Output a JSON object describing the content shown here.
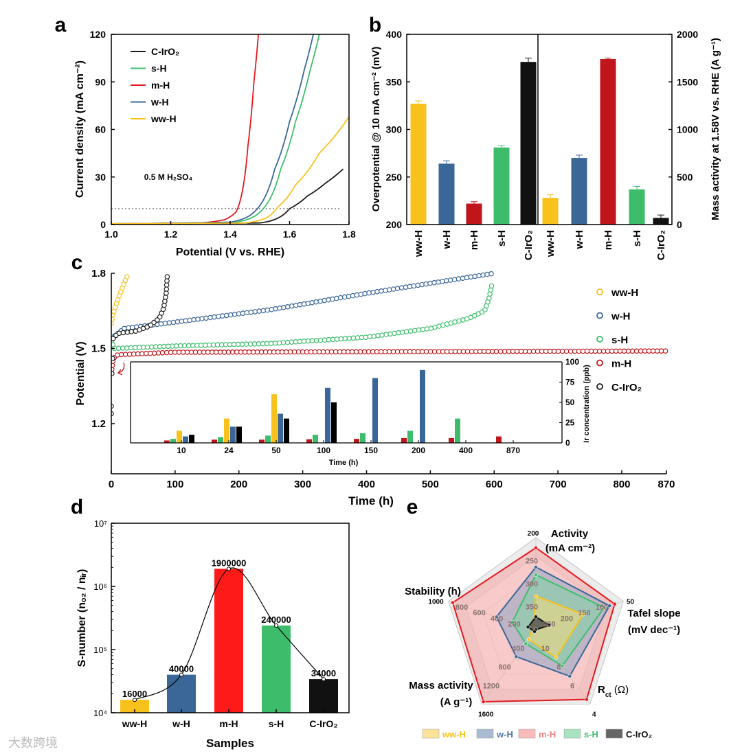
{
  "panel_labels": [
    "a",
    "b",
    "c",
    "d",
    "e"
  ],
  "watermark": "大数跨境",
  "chart_data": [
    {
      "panel": "a",
      "type": "line",
      "xlabel": "Potential (V vs. RHE)",
      "ylabel": "Current density (mA cm⁻²)",
      "xlim": [
        1.0,
        1.8
      ],
      "ylim": [
        0,
        120
      ],
      "xticks": [
        "1.0",
        "1.2",
        "1.4",
        "1.6",
        "1.8"
      ],
      "yticks": [
        "0",
        "30",
        "60",
        "90",
        "120"
      ],
      "annotation": "0.5 M H₂SO₄",
      "reference_line_y": 10,
      "legend": "top-left",
      "series": [
        {
          "name": "C-IrO₂",
          "color": "#1a1a1a",
          "points": [
            [
              1.0,
              0.5
            ],
            [
              1.5,
              1
            ],
            [
              1.56,
              4
            ],
            [
              1.6,
              10
            ],
            [
              1.66,
              18
            ],
            [
              1.72,
              26
            ],
            [
              1.78,
              35
            ]
          ]
        },
        {
          "name": "s-H",
          "color": "#3dbd6c",
          "points": [
            [
              1.0,
              0.5
            ],
            [
              1.42,
              1.5
            ],
            [
              1.48,
              5
            ],
            [
              1.52,
              12
            ],
            [
              1.57,
              35
            ],
            [
              1.62,
              65
            ],
            [
              1.67,
              98
            ],
            [
              1.7,
              120
            ]
          ]
        },
        {
          "name": "m-H",
          "color": "#e3191e",
          "points": [
            [
              1.0,
              0.5
            ],
            [
              1.3,
              1
            ],
            [
              1.38,
              3
            ],
            [
              1.42,
              8
            ],
            [
              1.44,
              20
            ],
            [
              1.46,
              50
            ],
            [
              1.48,
              90
            ],
            [
              1.495,
              120
            ]
          ]
        },
        {
          "name": "w-H",
          "color": "#3a6797",
          "points": [
            [
              1.0,
              0.5
            ],
            [
              1.4,
              1.5
            ],
            [
              1.46,
              5
            ],
            [
              1.5,
              12
            ],
            [
              1.55,
              35
            ],
            [
              1.6,
              65
            ],
            [
              1.65,
              98
            ],
            [
              1.68,
              120
            ]
          ]
        },
        {
          "name": "ww-H",
          "color": "#f7c11e",
          "points": [
            [
              1.0,
              0.5
            ],
            [
              1.45,
              1
            ],
            [
              1.52,
              4
            ],
            [
              1.56,
              11
            ],
            [
              1.62,
              25
            ],
            [
              1.7,
              45
            ],
            [
              1.8,
              68
            ]
          ]
        }
      ]
    },
    {
      "panel": "b",
      "type": "bar",
      "categories": [
        "ww-H",
        "w-H",
        "m-H",
        "s-H",
        "C-IrO₂"
      ],
      "colors": [
        "#f9c11b",
        "#3a6797",
        "#c0161b",
        "#3dbd6c",
        "#111111"
      ],
      "left": {
        "ylabel": "Overpotential @ 10 mA cm⁻² (mV)",
        "ylim": [
          200,
          400
        ],
        "yticks": [
          "200",
          "250",
          "300",
          "350",
          "400"
        ],
        "values": [
          327,
          264,
          222,
          281,
          371
        ],
        "errors": [
          3,
          3,
          2,
          2,
          4
        ]
      },
      "right": {
        "ylabel": "Mass activity at 1.58V vs. RHE (A g⁻¹)",
        "ylim": [
          0,
          2000
        ],
        "yticks": [
          "0",
          "500",
          "1000",
          "1500",
          "2000"
        ],
        "values": [
          280,
          700,
          1740,
          370,
          70
        ],
        "errors": [
          35,
          30,
          10,
          30,
          30
        ]
      }
    },
    {
      "panel": "c",
      "type": "scatter",
      "xlabel": "Time (h)",
      "ylabel": "Potential (V)",
      "xlim": [
        0,
        870
      ],
      "ylim": [
        1.0,
        1.8
      ],
      "xticks": [
        "0",
        "100",
        "200",
        "300",
        "400",
        "500",
        "600",
        "700",
        "800",
        "870"
      ],
      "yticks": [
        "1.2",
        "1.5",
        "1.8"
      ],
      "legend": "right",
      "series": [
        {
          "name": "ww-H",
          "color": "#f7c11e",
          "points": [
            [
              0,
              1.6
            ],
            [
              3,
              1.64
            ],
            [
              8,
              1.68
            ],
            [
              14,
              1.72
            ],
            [
              20,
              1.76
            ],
            [
              27,
              1.8
            ]
          ]
        },
        {
          "name": "w-H",
          "color": "#3a6797",
          "points": [
            [
              0,
              1.54
            ],
            [
              20,
              1.58
            ],
            [
              100,
              1.605
            ],
            [
              250,
              1.655
            ],
            [
              400,
              1.72
            ],
            [
              500,
              1.76
            ],
            [
              600,
              1.8
            ]
          ]
        },
        {
          "name": "s-H",
          "color": "#3dbd6c",
          "points": [
            [
              0,
              1.53
            ],
            [
              5,
              1.5
            ],
            [
              100,
              1.51
            ],
            [
              250,
              1.52
            ],
            [
              400,
              1.545
            ],
            [
              500,
              1.58
            ],
            [
              560,
              1.62
            ],
            [
              585,
              1.65
            ],
            [
              592,
              1.7
            ],
            [
              596,
              1.75
            ]
          ]
        },
        {
          "name": "m-H",
          "color": "#c0161b",
          "points": [
            [
              0,
              1.4
            ],
            [
              3,
              1.46
            ],
            [
              10,
              1.475
            ],
            [
              100,
              1.485
            ],
            [
              870,
              1.49
            ]
          ]
        },
        {
          "name": "C-IrO₂",
          "color": "#1a1a1a",
          "points": [
            [
              0,
              1.24
            ],
            [
              0,
              1.27
            ],
            [
              1,
              1.4
            ],
            [
              2,
              1.46
            ],
            [
              3,
              1.54
            ],
            [
              10,
              1.56
            ],
            [
              40,
              1.57
            ],
            [
              60,
              1.59
            ],
            [
              75,
              1.62
            ],
            [
              82,
              1.66
            ],
            [
              86,
              1.72
            ],
            [
              88,
              1.8
            ]
          ]
        }
      ],
      "inset": {
        "type": "bar",
        "xlabel": "Time (h)",
        "ylabel": "Ir concentration (ppb)",
        "categories": [
          "10",
          "24",
          "50",
          "100",
          "150",
          "200",
          "400",
          "870"
        ],
        "ylim": [
          0,
          100
        ],
        "yticks": [
          "0",
          "25",
          "50",
          "75",
          "100"
        ],
        "series": [
          {
            "name": "m-H",
            "color": "#c0161b",
            "values": [
              3,
              4,
              4,
              4.5,
              5,
              6,
              6,
              8
            ]
          },
          {
            "name": "s-H",
            "color": "#3dbd6c",
            "values": [
              5,
              7,
              9,
              10,
              12,
              15,
              30,
              null
            ]
          },
          {
            "name": "ww-H",
            "color": "#f9c11b",
            "values": [
              15,
              30,
              60,
              null,
              null,
              null,
              null,
              null
            ]
          },
          {
            "name": "w-H",
            "color": "#3a6797",
            "values": [
              8,
              20,
              36,
              68,
              80,
              90,
              null,
              null
            ]
          },
          {
            "name": "C-IrO₂",
            "color": "#000000",
            "values": [
              10,
              20,
              30,
              50,
              null,
              null,
              null,
              null
            ]
          }
        ]
      }
    },
    {
      "panel": "d",
      "type": "bar",
      "scale": "log",
      "xlabel": "Samples",
      "ylabel": "S-number (nₒ₂ / nᵢᵣ)",
      "categories": [
        "ww-H",
        "w-H",
        "m-H",
        "s-H",
        "C-IrO₂"
      ],
      "colors": [
        "#f9c11b",
        "#3a6797",
        "#ff1a1a",
        "#3dbd6c",
        "#111111"
      ],
      "values": [
        16000,
        40000,
        1900000,
        240000,
        34000
      ],
      "value_labels": [
        "16000",
        "40000",
        "1900000",
        "240000",
        "34000"
      ],
      "ylim": [
        10000,
        10000000
      ],
      "yticks": [
        "10⁴",
        "10⁵",
        "10⁶",
        "10⁷"
      ]
    },
    {
      "panel": "e",
      "type": "radar",
      "axes": [
        {
          "title": "Activity",
          "title2": "(mA cm⁻²)",
          "center": 400,
          "outer": 200,
          "ticks": [
            "200",
            "250",
            "300",
            "350"
          ]
        },
        {
          "title": "Tafel slope",
          "title2": "(mV dec⁻¹)",
          "center": 300,
          "outer": 50,
          "ticks": [
            "50",
            "100",
            "150",
            "200",
            "250"
          ]
        },
        {
          "title": "R",
          "title_sub": "ct",
          "title_unit": " (Ω)",
          "center": 12,
          "outer": 4,
          "ticks": [
            "4",
            "6",
            "8",
            "10"
          ]
        },
        {
          "title": "Mass activity",
          "title2": "(A g⁻¹)",
          "center": 0,
          "outer": 1600,
          "ticks": [
            "1600",
            "1200",
            "800",
            "400"
          ]
        },
        {
          "title": "Stability (h)",
          "center": 0,
          "outer": 1000,
          "ticks": [
            "1000",
            "800",
            "600",
            "400",
            "200"
          ]
        }
      ],
      "series": [
        {
          "name": "m-H",
          "color": "#e3191e",
          "fill": "#f7a3a3",
          "values": [
            222,
            75,
            4.5,
            1550,
            950
          ]
        },
        {
          "name": "w-H",
          "color": "#3a6797",
          "fill": "#8ea6c4",
          "values": [
            264,
            90,
            7.0,
            580,
            450
          ]
        },
        {
          "name": "s-H",
          "color": "#3dbd6c",
          "fill": "#7fd3a4",
          "values": [
            281,
            105,
            8.1,
            300,
            270
          ]
        },
        {
          "name": "ww-H",
          "color": "#f7c11e",
          "fill": "#f5dd7a",
          "values": [
            327,
            165,
            9.0,
            210,
            40
          ]
        },
        {
          "name": "C-IrO₂",
          "color": "#111111",
          "fill": "#555555",
          "values": [
            372,
            262,
            12,
            40,
            90
          ]
        }
      ],
      "legend": [
        {
          "name": "ww-H",
          "color": "#f7c11e",
          "fill": "#fbe39a"
        },
        {
          "name": "w-H",
          "color": "#4b77a8",
          "fill": "#a9bcd3"
        },
        {
          "name": "m-H",
          "color": "#f08080",
          "fill": "#f9baba"
        },
        {
          "name": "s-H",
          "color": "#3dbd6c",
          "fill": "#a8e2c0"
        },
        {
          "name": "C-IrO₂",
          "color": "#111111",
          "fill": "#666666"
        }
      ]
    }
  ]
}
